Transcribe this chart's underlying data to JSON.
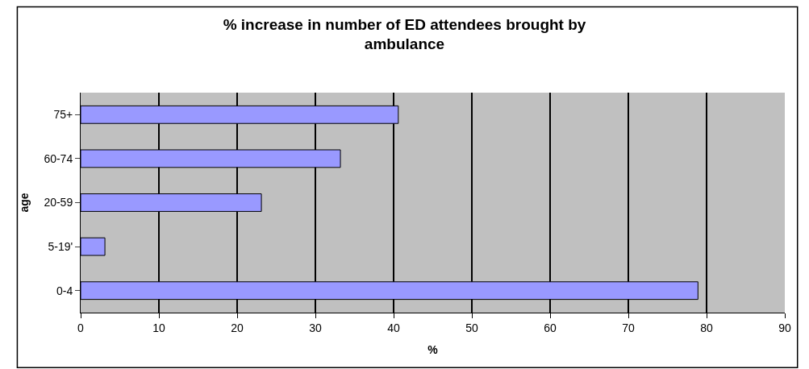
{
  "chart_data": {
    "type": "bar",
    "orientation": "horizontal",
    "title": "% increase in number of ED attendees brought by ambulance",
    "xlabel": "%",
    "ylabel": "age",
    "categories": [
      "75+",
      "60-74",
      "20-59",
      "5-19'",
      "0-4"
    ],
    "values": [
      40.6,
      33.2,
      23.1,
      3.1,
      78.9
    ],
    "color": "#9999ff",
    "xlim": [
      0,
      90
    ],
    "xticks": [
      0,
      10,
      20,
      30,
      40,
      50,
      60,
      70,
      80,
      90
    ],
    "grid": "x",
    "legend": false
  }
}
